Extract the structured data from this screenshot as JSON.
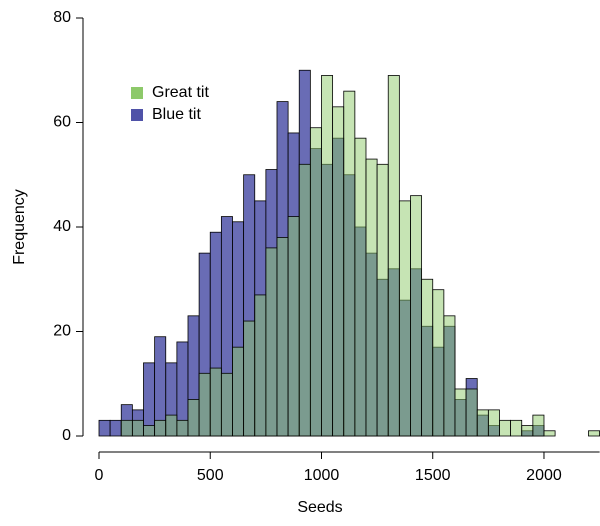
{
  "chart_data": {
    "type": "histogram",
    "xlabel": "Seeds",
    "ylabel": "Frequency",
    "bins": [
      0,
      50,
      100,
      150,
      200,
      250,
      300,
      350,
      400,
      450,
      500,
      550,
      600,
      650,
      700,
      750,
      800,
      850,
      900,
      950,
      1000,
      1050,
      1100,
      1150,
      1200,
      1250,
      1300,
      1350,
      1400,
      1450,
      1500,
      1550,
      1600,
      1650,
      1700,
      1750,
      1800,
      1850,
      1900,
      1950,
      2000,
      2050,
      2100,
      2150,
      2200,
      2250
    ],
    "series": [
      {
        "name": "Great tit",
        "color": "#8dc96a",
        "values": [
          0,
          0,
          3,
          3,
          2,
          3,
          4,
          3,
          7,
          12,
          13,
          12,
          17,
          22,
          27,
          36,
          38,
          42,
          52,
          59,
          69,
          63,
          66,
          57,
          53,
          52,
          69,
          45,
          46,
          30,
          28,
          23,
          9,
          9,
          5,
          5,
          3,
          3,
          2,
          4,
          1,
          0,
          0,
          0,
          1
        ]
      },
      {
        "name": "Blue tit",
        "color": "#4f52a8",
        "values": [
          3,
          3,
          6,
          5,
          14,
          19,
          14,
          18,
          23,
          35,
          39,
          42,
          41,
          50,
          45,
          51,
          64,
          58,
          70,
          55,
          52,
          57,
          50,
          40,
          35,
          30,
          32,
          26,
          32,
          21,
          17,
          21,
          7,
          11,
          4,
          2,
          0,
          0,
          1,
          2,
          0,
          0,
          0,
          0,
          0
        ]
      }
    ],
    "xlim": [
      0,
      2250
    ],
    "ylim": [
      0,
      80
    ],
    "xticks": [
      0,
      500,
      1000,
      1500,
      2000
    ],
    "yticks": [
      0,
      20,
      40,
      60,
      80
    ]
  }
}
